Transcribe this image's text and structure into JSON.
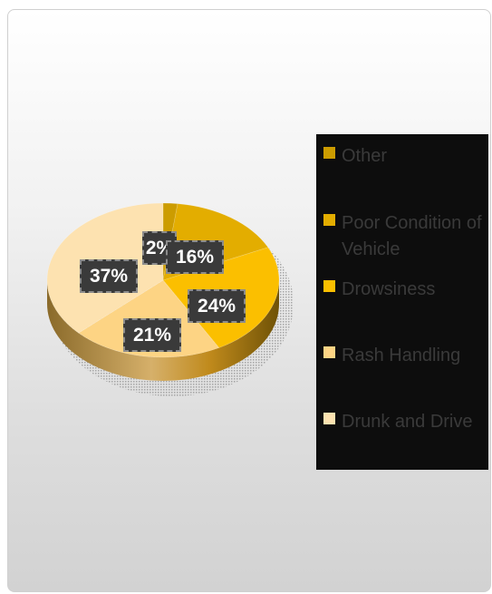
{
  "chart_data": {
    "type": "pie",
    "slices": [
      {
        "label": "Other",
        "value": 2,
        "display": "2%",
        "color": "#cc9c00"
      },
      {
        "label": "Poor Condition of Vehicle",
        "value": 16,
        "display": "16%",
        "color": "#e3ad00"
      },
      {
        "label": "Drowsiness",
        "value": 24,
        "display": "24%",
        "color": "#fbbf00"
      },
      {
        "label": "Rash Handling",
        "value": 21,
        "display": "21%",
        "color": "#fdd484"
      },
      {
        "label": "Drunk and Drive",
        "value": 37,
        "display": "37%",
        "color": "#fde2b0"
      }
    ],
    "legend_position": "right"
  }
}
